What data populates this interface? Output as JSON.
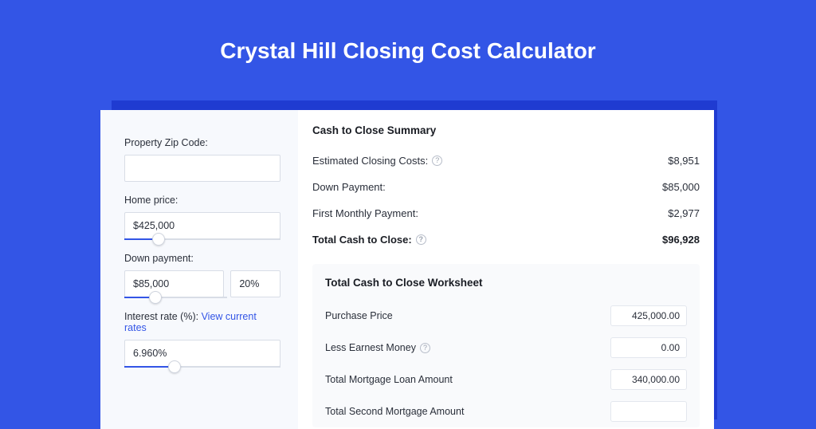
{
  "colors": {
    "page_bg": "#3355e6",
    "card_shadow": "#1f3bd1",
    "card_bg": "#ffffff",
    "left_panel_bg": "#f7f9fd",
    "text": "#2a2f3a",
    "text_strong": "#1a1d24",
    "border": "#d8dde6",
    "link": "#3355e6",
    "worksheet_bg": "#f9fafc",
    "help_border": "#b7bdc9"
  },
  "header": {
    "title": "Crystal Hill Closing Cost Calculator",
    "title_fontsize": 28,
    "title_color": "#ffffff"
  },
  "inputs": {
    "zip": {
      "label": "Property Zip Code:",
      "value": ""
    },
    "home_price": {
      "label": "Home price:",
      "value": "$425,000",
      "slider_pct": 22
    },
    "down_payment": {
      "label": "Down payment:",
      "value": "$85,000",
      "pct_value": "20%",
      "slider_pct": 30
    },
    "interest_rate": {
      "label_prefix": "Interest rate (%): ",
      "link_text": "View current rates",
      "value": "6.960%",
      "slider_pct": 32
    }
  },
  "summary": {
    "title": "Cash to Close Summary",
    "rows": [
      {
        "label": "Estimated Closing Costs:",
        "help": true,
        "value": "$8,951"
      },
      {
        "label": "Down Payment:",
        "help": false,
        "value": "$85,000"
      },
      {
        "label": "First Monthly Payment:",
        "help": false,
        "value": "$2,977"
      }
    ],
    "total": {
      "label": "Total Cash to Close:",
      "help": true,
      "value": "$96,928"
    }
  },
  "worksheet": {
    "title": "Total Cash to Close Worksheet",
    "rows": [
      {
        "label": "Purchase Price",
        "help": false,
        "value": "425,000.00"
      },
      {
        "label": "Less Earnest Money",
        "help": true,
        "value": "0.00"
      },
      {
        "label": "Total Mortgage Loan Amount",
        "help": false,
        "value": "340,000.00"
      },
      {
        "label": "Total Second Mortgage Amount",
        "help": false,
        "value": ""
      }
    ]
  }
}
